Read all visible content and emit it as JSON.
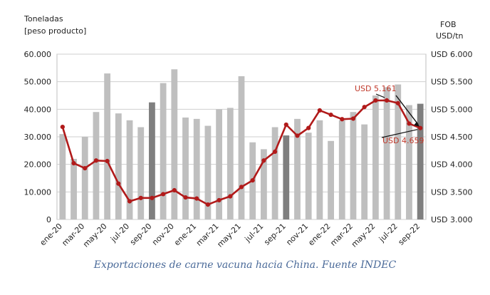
{
  "chart_data": {
    "type": "bar+line",
    "left_axis_title": [
      "Toneladas",
      "[peso producto]"
    ],
    "right_axis_title": [
      "FOB",
      "USD/tn"
    ],
    "left_ticks": [
      "0",
      "10.000",
      "20.000",
      "30.000",
      "40.000",
      "50.000",
      "60.000"
    ],
    "right_ticks": [
      "USD 3.000",
      "USD 3.500",
      "USD 4.000",
      "USD 4.500",
      "USD 5.000",
      "USD 5.500",
      "USD 6.000"
    ],
    "ylim_left": [
      0,
      60000
    ],
    "ylim_right": [
      3000,
      6000
    ],
    "categories": [
      "ene-20",
      "feb-20",
      "mar-20",
      "abr-20",
      "may-20",
      "jun-20",
      "jul-20",
      "ago-20",
      "sep-20",
      "oct-20",
      "nov-20",
      "dic-20",
      "ene-21",
      "feb-21",
      "mar-21",
      "abr-21",
      "may-21",
      "jun-21",
      "jul-21",
      "ago-21",
      "sep-21",
      "oct-21",
      "nov-21",
      "dic-21",
      "ene-22",
      "feb-22",
      "mar-22",
      "abr-22",
      "may-22",
      "jun-22",
      "jul-22",
      "ago-22",
      "sep-22"
    ],
    "x_tick_labels": [
      "ene-20",
      "mar-20",
      "may-20",
      "jul-20",
      "sep-20",
      "nov-20",
      "ene-21",
      "mar-21",
      "may-21",
      "jul-21",
      "sep-21",
      "nov-21",
      "ene-22",
      "mar-22",
      "may-22",
      "jul-22",
      "sep-22"
    ],
    "bars": {
      "values": [
        31000,
        22000,
        30000,
        39000,
        53000,
        38500,
        36000,
        33500,
        42500,
        49500,
        54500,
        37000,
        36500,
        34000,
        40000,
        40500,
        52000,
        28000,
        25500,
        33500,
        30500,
        36500,
        31500,
        36000,
        28500,
        36000,
        39000,
        34500,
        45000,
        48000,
        49000,
        41500,
        42000
      ],
      "highlight_indices": [
        8,
        20,
        32
      ],
      "color": "#bfbfbf",
      "highlight_color": "#7f7f7f"
    },
    "line": {
      "values": [
        4680,
        4020,
        3930,
        4070,
        4060,
        3650,
        3330,
        3390,
        3390,
        3460,
        3530,
        3400,
        3380,
        3270,
        3350,
        3420,
        3590,
        3710,
        4070,
        4230,
        4720,
        4520,
        4660,
        4980,
        4900,
        4820,
        4830,
        5040,
        5160,
        5161,
        5110,
        4740,
        4659
      ],
      "color": "#b11a1a"
    },
    "annotations": [
      {
        "text": "USD 5.161",
        "index": 29
      },
      {
        "text": "USD 4.659",
        "index": 32
      }
    ]
  },
  "caption": "Exportaciones de carne vacuna hacia China. Fuente INDEC"
}
